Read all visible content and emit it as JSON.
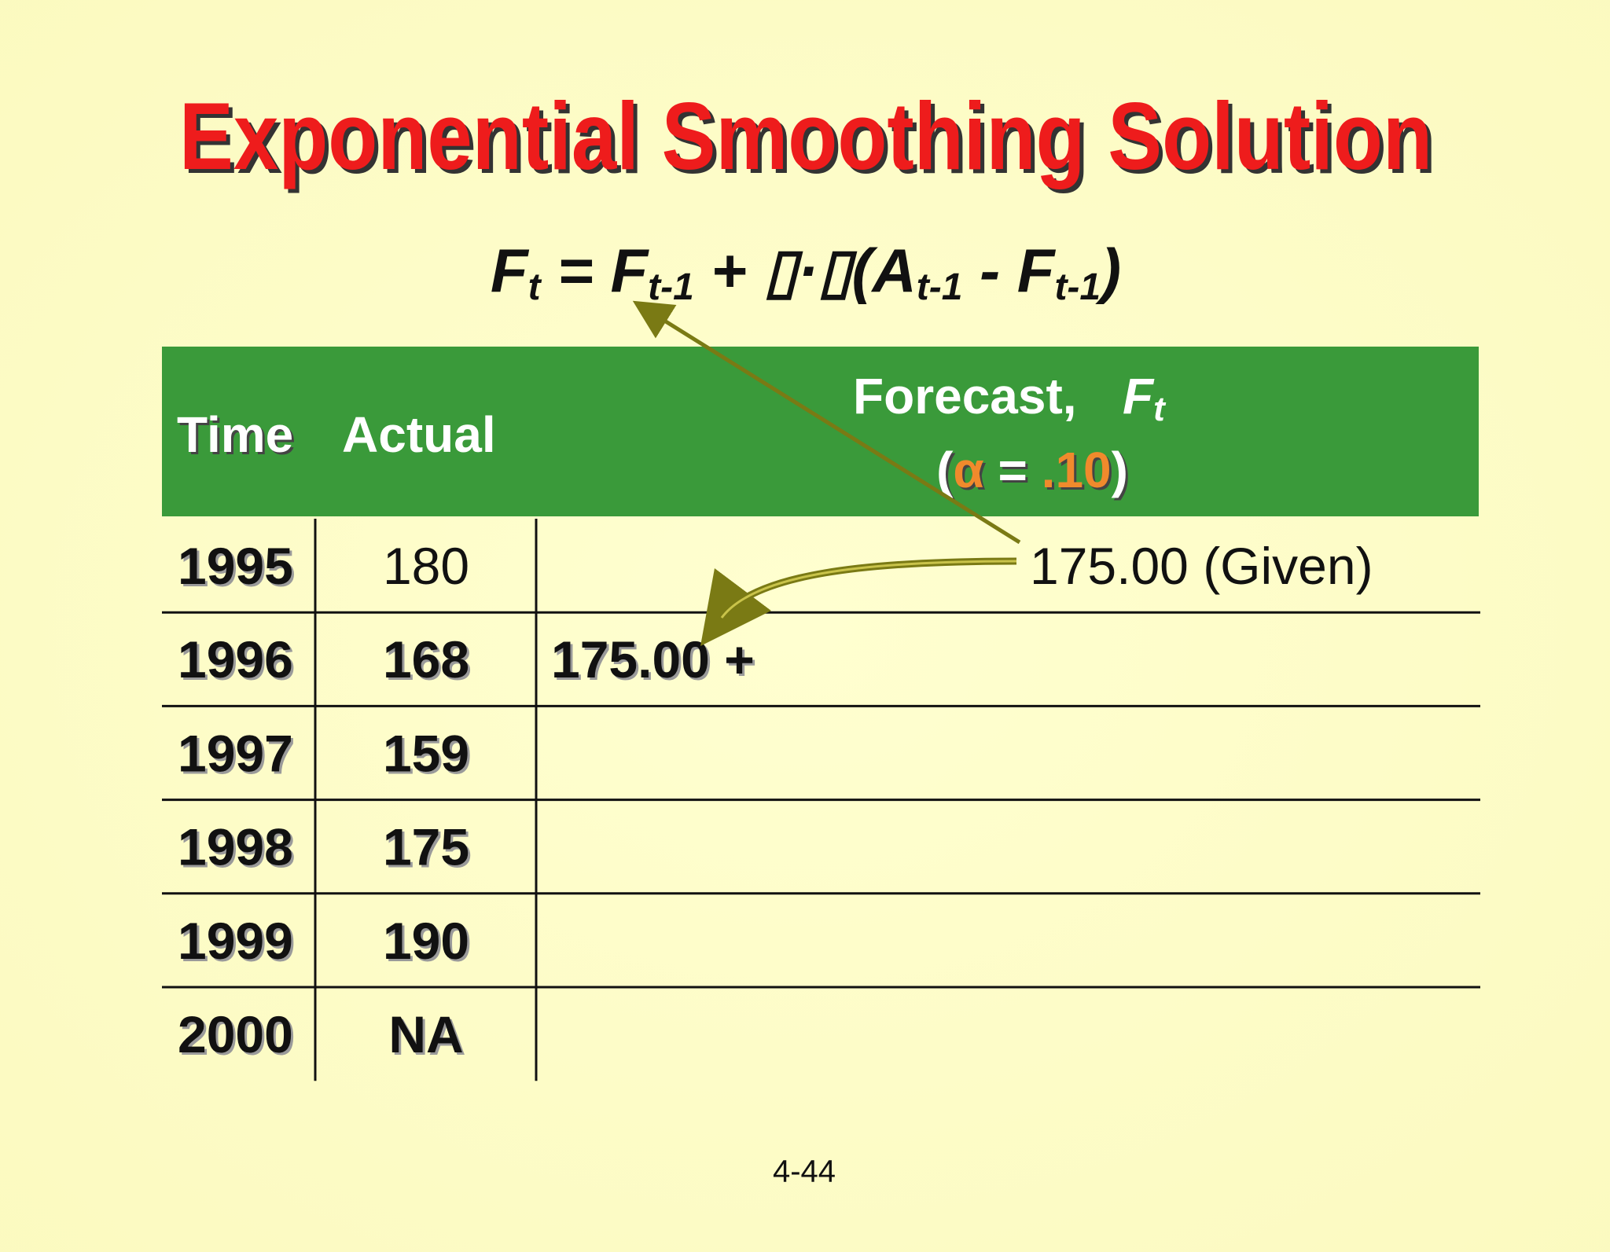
{
  "title": "Exponential Smoothing Solution",
  "formula": [
    {
      "text": "F",
      "sub": false
    },
    {
      "text": "t",
      "sub": true
    },
    {
      "text": " = F",
      "sub": false
    },
    {
      "text": "t-1",
      "sub": true
    },
    {
      "text": " + ▯·▯(A",
      "sub": false
    },
    {
      "text": "t-1",
      "sub": true
    },
    {
      "text": " - F",
      "sub": false
    },
    {
      "text": "t-1",
      "sub": true
    },
    {
      "text": ")",
      "sub": false
    }
  ],
  "table": {
    "header": {
      "time": "Time",
      "actual": "Actual",
      "forecast": "Forecast,",
      "forecast_symbol": "F",
      "forecast_sub": "t",
      "alpha": [
        {
          "text": "(",
          "color": "#ffffff"
        },
        {
          "text": "α",
          "color": "#f08a2c"
        },
        {
          "text": "  = ",
          "color": "#ffffff"
        },
        {
          "text": ".10",
          "color": "#f08a2c"
        },
        {
          "text": ")",
          "color": "#ffffff"
        }
      ]
    },
    "rows": [
      {
        "time": "1995",
        "actual": "180",
        "forecast": "175.00 (Given)"
      },
      {
        "time": "1996",
        "actual": "168",
        "forecast": "175.00 +"
      },
      {
        "time": "1997",
        "actual": "159"
      },
      {
        "time": "1998",
        "actual": "175"
      },
      {
        "time": "1999",
        "actual": "190"
      },
      {
        "time": "2000",
        "actual": "NA"
      }
    ]
  },
  "footer": "4-44"
}
